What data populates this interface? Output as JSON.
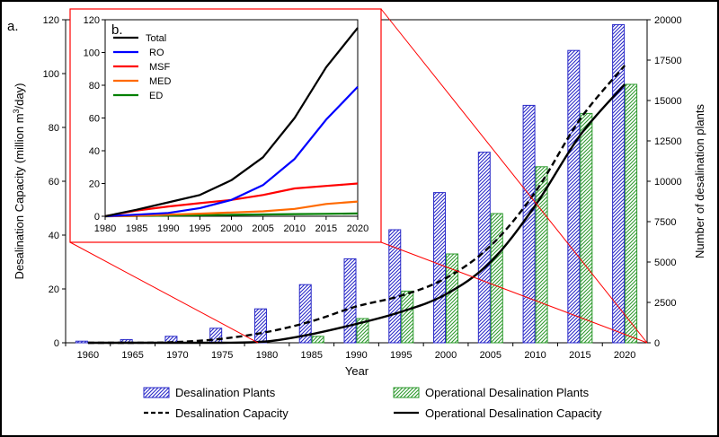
{
  "chart_data": [
    {
      "type": "bar+line",
      "panel_label": "a.",
      "xlabel": "Year",
      "ylabel_left_prefix": "Desalination Capacity (million m",
      "ylabel_left_sup": "3",
      "ylabel_left_suffix": "/day)",
      "ylabel_right": "Number of desalination plants",
      "x_ticks": [
        "1960",
        "1965",
        "1970",
        "1975",
        "1980",
        "1985",
        "1990",
        "1995",
        "2000",
        "2005",
        "2010",
        "2015",
        "2020"
      ],
      "ylim_left": [
        0,
        120
      ],
      "ylim_right": [
        0,
        20000
      ],
      "y_ticks_left": [
        "0",
        "20",
        "40",
        "60",
        "80",
        "100",
        "120"
      ],
      "y_ticks_right": [
        "0",
        "2500",
        "5000",
        "7500",
        "10000",
        "12500",
        "15000",
        "17500",
        "20000"
      ],
      "bars": [
        {
          "name": "Desalination Plants",
          "axis": "right",
          "values": [
            100,
            200,
            400,
            900,
            2100,
            3600,
            5200,
            7000,
            9300,
            11800,
            14700,
            18100,
            19700
          ]
        },
        {
          "name": "Operational Desalination Plants",
          "axis": "right",
          "values": [
            0,
            0,
            0,
            0,
            0,
            400,
            1500,
            3200,
            5500,
            8000,
            10900,
            14200,
            16000
          ]
        }
      ],
      "lines": [
        {
          "name": "Desalination Capacity",
          "axis": "left",
          "style": "dashed",
          "x": [
            1960,
            1965,
            1970,
            1975,
            1980,
            1985,
            1990,
            1995,
            2000,
            2005,
            2010,
            2015,
            2020
          ],
          "values": [
            0,
            0,
            0.3,
            1.5,
            4,
            8,
            13.5,
            17.5,
            24,
            36,
            56,
            83,
            103
          ]
        },
        {
          "name": "Operational Desalination Capacity",
          "axis": "left",
          "style": "solid",
          "x": [
            1960,
            1965,
            1970,
            1975,
            1980,
            1985,
            1990,
            1995,
            2000,
            2005,
            2010,
            2015,
            2020
          ],
          "values": [
            0,
            0,
            0,
            0,
            0.5,
            3.2,
            7,
            11.5,
            18,
            30,
            51,
            77,
            96
          ]
        }
      ],
      "legend": {
        "placement": "bottom",
        "entries": [
          "Desalination Plants",
          "Operational Desalination Plants",
          "Desalination Capacity",
          "Operational Desalination Capacity"
        ]
      },
      "colors": {
        "plants": "#2929c8",
        "operational_plants": "#2e9a2e",
        "capacity": "#000000",
        "zoom_lines": "#ff0000"
      }
    },
    {
      "type": "line",
      "panel_label": "b.",
      "placement": "inset-top-left",
      "x": [
        1980,
        1985,
        1990,
        1995,
        2000,
        2005,
        2010,
        2015,
        2020
      ],
      "x_ticks": [
        "1980",
        "1985",
        "1990",
        "1995",
        "2000",
        "2005",
        "2010",
        "2015",
        "2020"
      ],
      "y_ticks": [
        "0",
        "20",
        "40",
        "60",
        "80",
        "100",
        "120"
      ],
      "ylim": [
        0,
        120
      ],
      "series": [
        {
          "name": "Total",
          "color": "#000000",
          "values": [
            0,
            4,
            8.5,
            13,
            22,
            36,
            60,
            91,
            115
          ]
        },
        {
          "name": "RO",
          "color": "#0000ff",
          "values": [
            0,
            1,
            2,
            5,
            10,
            19,
            35,
            59,
            79
          ]
        },
        {
          "name": "MSF",
          "color": "#ff0000",
          "values": [
            0,
            3.5,
            6,
            8,
            10,
            13,
            17,
            18.5,
            20
          ]
        },
        {
          "name": "MED",
          "color": "#ff6a00",
          "values": [
            0,
            0.3,
            1,
            1.6,
            2.3,
            3,
            4.5,
            7.5,
            9
          ]
        },
        {
          "name": "ED",
          "color": "#008000",
          "values": [
            0,
            0.2,
            0.4,
            0.6,
            0.9,
            1.1,
            1.3,
            1.5,
            1.7
          ]
        }
      ],
      "legend": {
        "placement": "top-left"
      }
    }
  ]
}
